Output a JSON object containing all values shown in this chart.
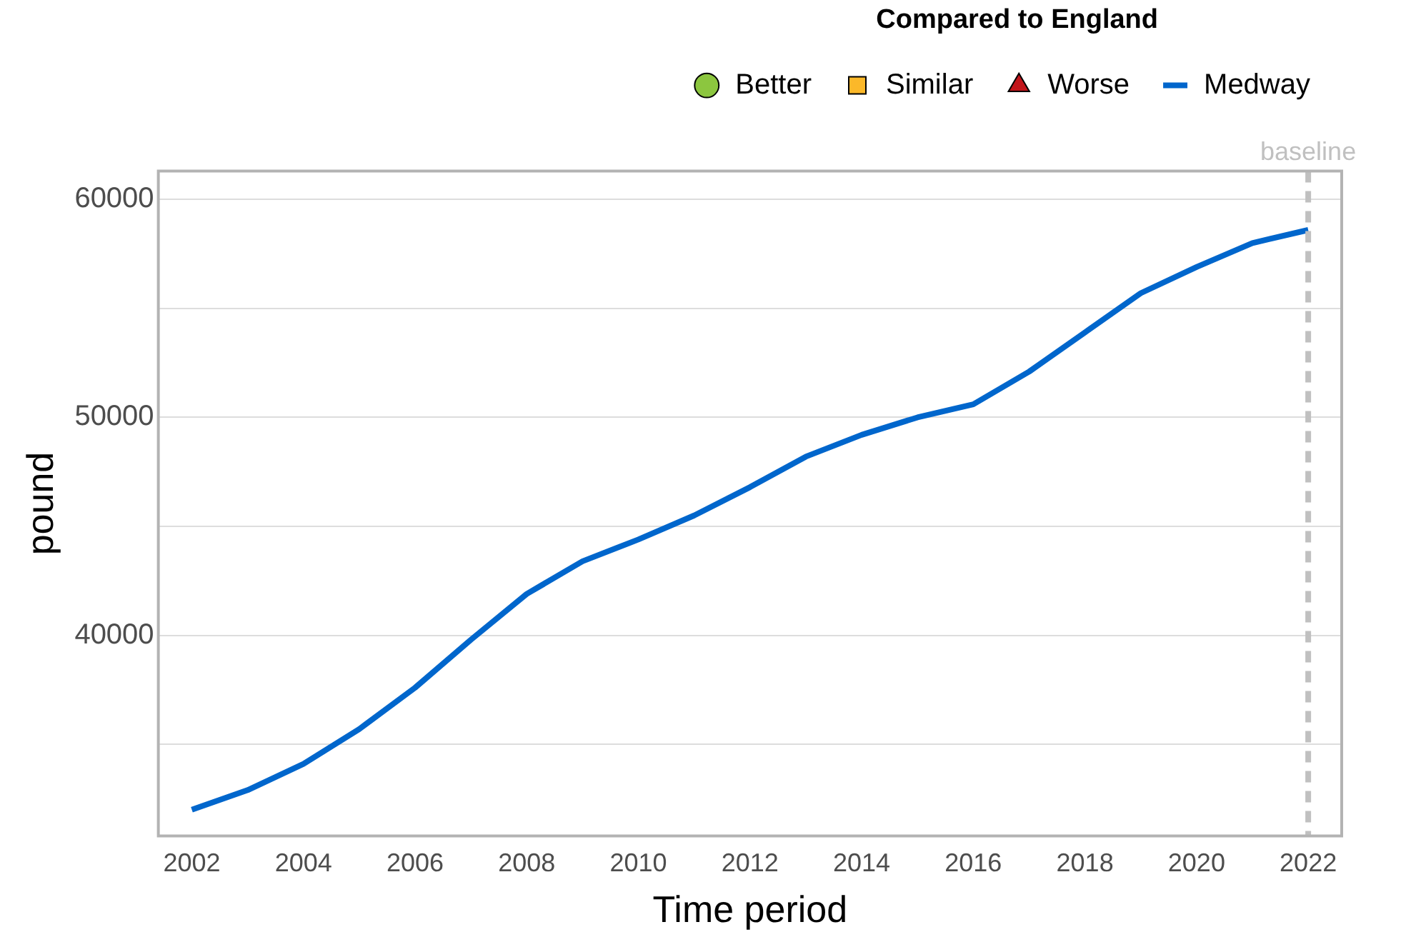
{
  "chart_data": {
    "type": "line",
    "xlabel": "Time period",
    "ylabel": "pound",
    "legend_title": "Compared to England",
    "legend": "top right",
    "grid": "y",
    "x": [
      2002,
      2003,
      2004,
      2005,
      2006,
      2007,
      2008,
      2009,
      2010,
      2011,
      2012,
      2013,
      2014,
      2015,
      2016,
      2017,
      2018,
      2019,
      2020,
      2021,
      2022
    ],
    "series": [
      {
        "name": "Better",
        "type": "scatter",
        "marker": "circle",
        "color": "#8cc63f",
        "values": [
          null,
          null,
          null,
          null,
          null,
          null,
          null,
          null,
          null,
          null,
          null,
          null,
          null,
          null,
          null,
          null,
          null,
          null,
          null,
          null,
          null
        ]
      },
      {
        "name": "Similar",
        "type": "scatter",
        "marker": "square",
        "color": "#fbb829",
        "values": [
          null,
          null,
          null,
          null,
          null,
          null,
          null,
          null,
          null,
          null,
          null,
          null,
          null,
          null,
          null,
          null,
          null,
          null,
          null,
          null,
          null
        ]
      },
      {
        "name": "Worse",
        "type": "scatter",
        "marker": "triangle",
        "color": "#c2151b",
        "values": [
          null,
          null,
          null,
          null,
          null,
          null,
          null,
          null,
          null,
          null,
          null,
          null,
          null,
          null,
          null,
          null,
          null,
          null,
          null,
          null,
          null
        ]
      },
      {
        "name": "Medway",
        "type": "line",
        "marker": "none",
        "color": "#0066cc",
        "values": [
          32000,
          32900,
          34100,
          35700,
          37600,
          39800,
          41900,
          43400,
          44400,
          45500,
          46800,
          48200,
          49200,
          50000,
          50600,
          52100,
          53900,
          55700,
          56900,
          58000,
          58600
        ]
      }
    ],
    "xlim": [
      2001.4,
      2022.6
    ],
    "xticks": [
      2002,
      2004,
      2006,
      2008,
      2010,
      2012,
      2014,
      2016,
      2018,
      2020,
      2022
    ],
    "ylim": [
      30800,
      61300
    ],
    "yticks": [
      {
        "value": 35000,
        "label": null
      },
      40000,
      {
        "value": 45000,
        "label": null
      },
      50000,
      {
        "value": 55000,
        "label": null
      },
      60000
    ],
    "ref_lines": [
      {
        "axis": "x",
        "value": 2022,
        "label": "baseline",
        "color": "#c0c0c0",
        "line_style": "dashed"
      }
    ]
  }
}
